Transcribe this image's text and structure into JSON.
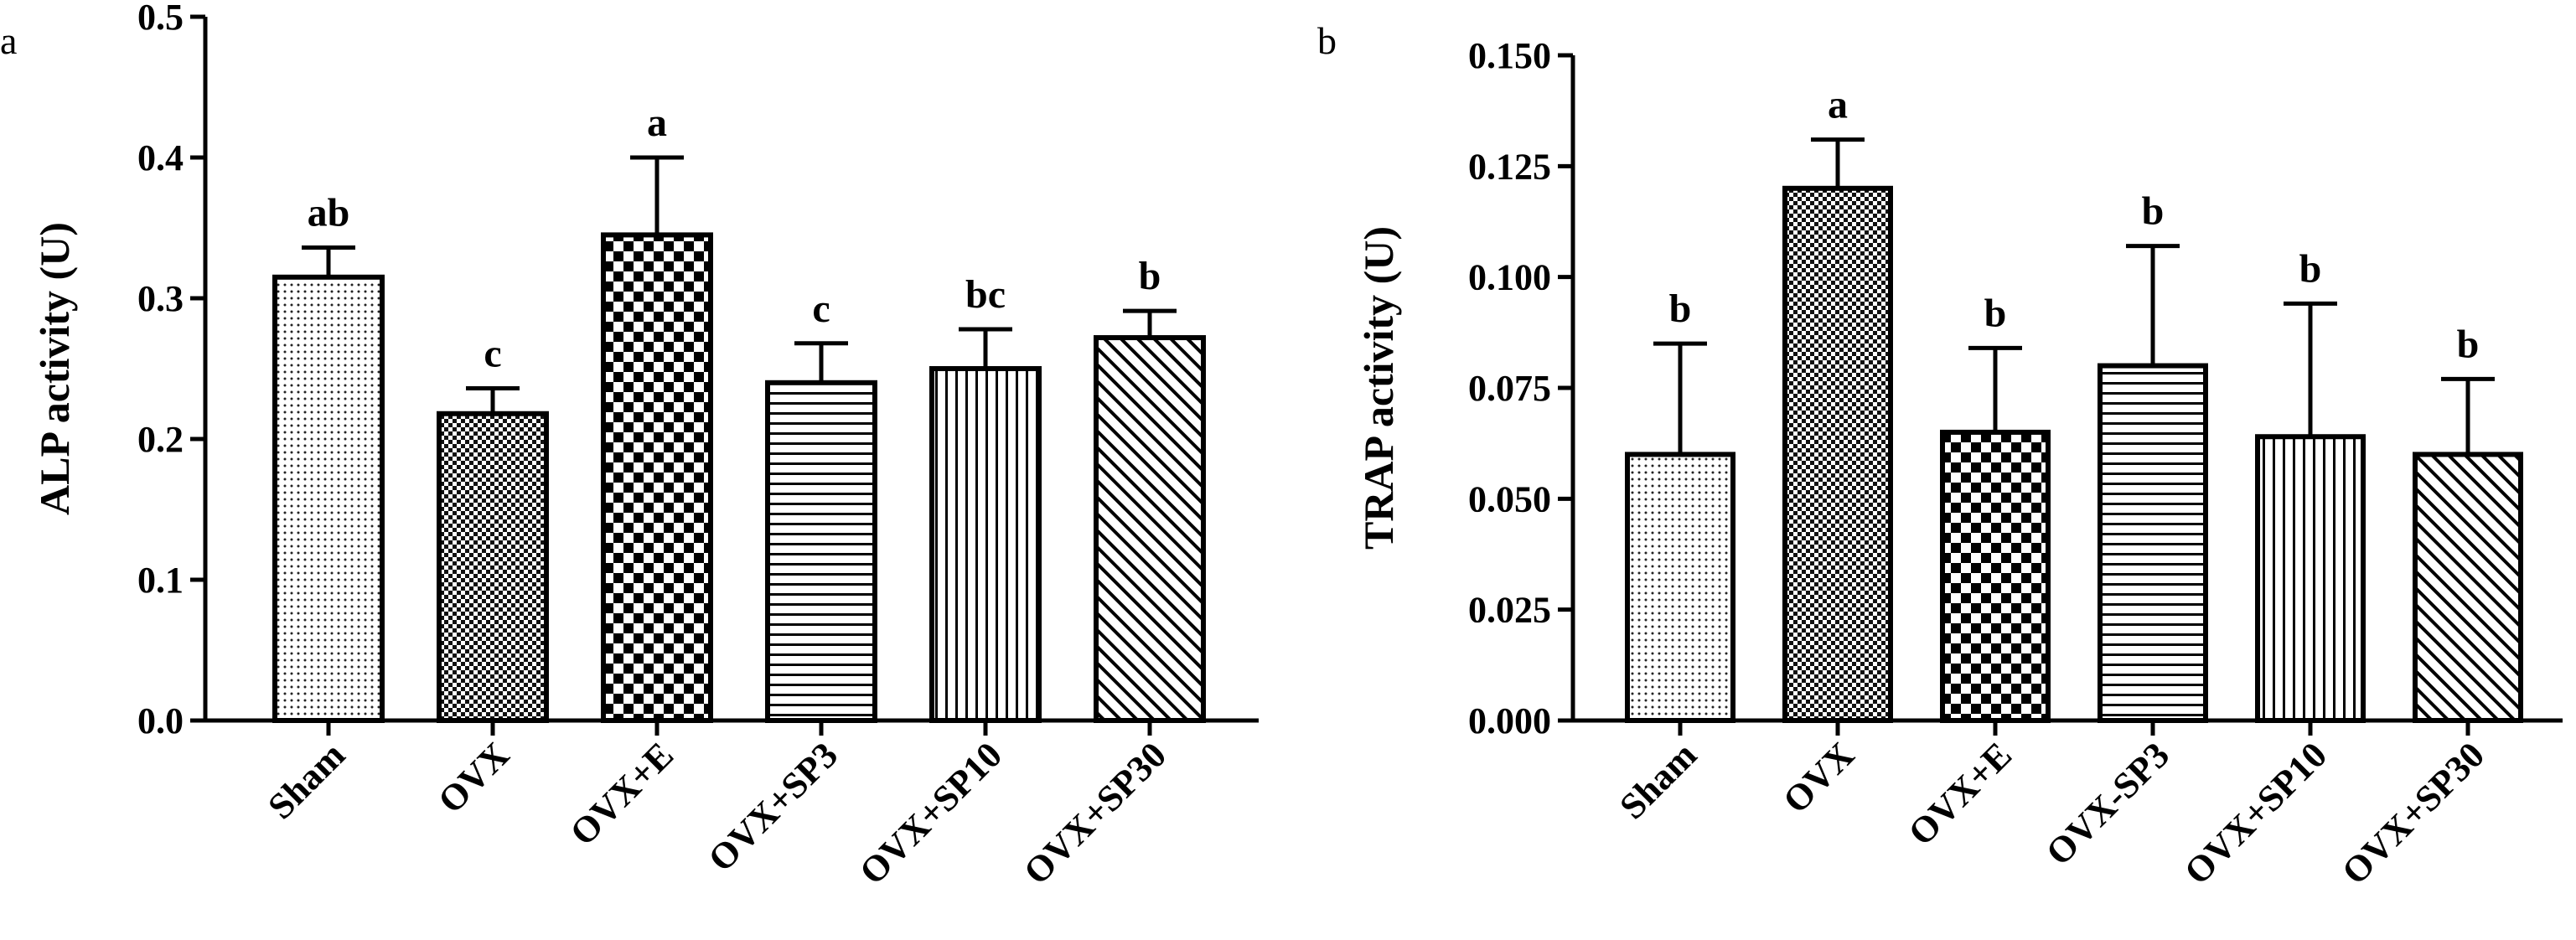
{
  "chart_data": [
    {
      "panel": "a",
      "type": "bar",
      "ylabel": "ALP activity (U)",
      "ylim": [
        0,
        0.5
      ],
      "yticks": [
        "0.0",
        "0.1",
        "0.2",
        "0.3",
        "0.4",
        "0.5"
      ],
      "categories": [
        "Sham",
        "OVX",
        "OVX+E",
        "OVX+SP3",
        "OVX+SP10",
        "OVX+SP30"
      ],
      "values": [
        0.315,
        0.218,
        0.345,
        0.24,
        0.25,
        0.272
      ],
      "errors": [
        0.021,
        0.018,
        0.055,
        0.028,
        0.028,
        0.019
      ],
      "significance": [
        "ab",
        "c",
        "a",
        "c",
        "bc",
        "b"
      ],
      "patterns": [
        "dots",
        "fine-check",
        "checker",
        "horizontal",
        "vertical",
        "diagonal"
      ]
    },
    {
      "panel": "b",
      "type": "bar",
      "ylabel": "TRAP activity (U)",
      "ylim": [
        0,
        0.15
      ],
      "yticks": [
        "0.000",
        "0.025",
        "0.050",
        "0.075",
        "0.100",
        "0.125",
        "0.150"
      ],
      "categories": [
        "Sham",
        "OVX",
        "OVX+E",
        "OVX-SP3",
        "OVX+SP10",
        "OVX+SP30"
      ],
      "values": [
        0.06,
        0.12,
        0.065,
        0.08,
        0.064,
        0.06
      ],
      "errors": [
        0.025,
        0.011,
        0.019,
        0.027,
        0.03,
        0.017
      ],
      "significance": [
        "b",
        "a",
        "b",
        "b",
        "b",
        "b"
      ],
      "patterns": [
        "dots",
        "fine-check",
        "checker",
        "horizontal",
        "vertical",
        "diagonal"
      ]
    }
  ]
}
